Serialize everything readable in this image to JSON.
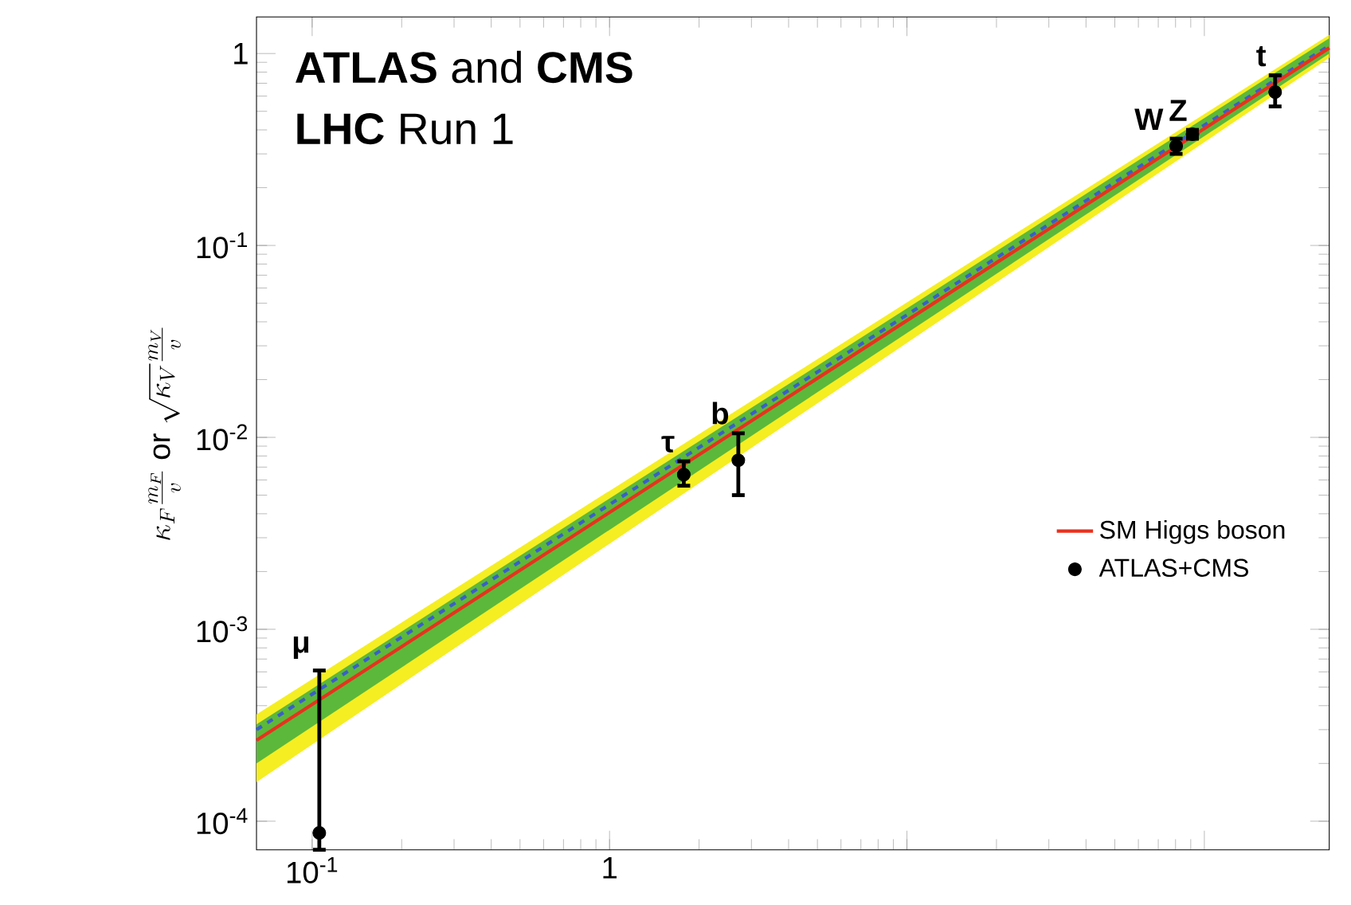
{
  "chart_data": {
    "type": "scatter",
    "ylabel": "\\kappa_F\\frac{m_F}{v}\\mbox{ or }\\sqrt{\\kappa_V}\\frac{m_V}{v}",
    "log": "xy",
    "xlim": [
      0.065,
      263
    ],
    "ylim": [
      7.1e-05,
      1.55
    ],
    "xticks": [
      {
        "value": 0.1,
        "label": "10$^{-1}$"
      },
      1,
      {
        "value": 10,
        "label": null
      },
      {
        "value": 100,
        "label": null
      }
    ],
    "yticks": [
      {
        "value": 0.0001,
        "label": "10$^{-4}$"
      },
      {
        "value": 0.001,
        "label": "10$^{-3}$"
      },
      {
        "value": 0.01,
        "label": "10$^{-2}$"
      },
      {
        "value": 0.1,
        "label": "10$^{-1}$"
      },
      1
    ],
    "grid": false,
    "legend": "right",
    "marker": "circle",
    "series": [
      {
        "type": "line",
        "color": "#3a5fc8",
        "line_style": "dashed",
        "marker": "none",
        "x": [
          0.065,
          263
        ],
        "values": [
          0.0003,
          1.1
        ],
        "lower": [
          0.00016,
          0.95
        ],
        "upper": [
          0.00036,
          1.25
        ]
      },
      {
        "name": "SM Higgs boson",
        "type": "line",
        "color": "#e8321e",
        "marker": "none",
        "x": [
          0.065,
          263
        ],
        "values": [
          0.000264,
          1.07
        ],
        "lower": [
          0.0002,
          1.0
        ],
        "upper": [
          0.00032,
          1.2
        ]
      },
      {
        "name": "ATLAS+CMS",
        "color": "#000000",
        "x": [
          0.1057,
          1.777,
          2.71,
          80.4,
          91.2,
          173
        ],
        "values": [
          8.7e-05,
          0.0064,
          0.0076,
          0.33,
          0.38,
          0.63
        ],
        "errors": [
          [
            7.1e-05,
            0.00061
          ],
          [
            0.0056,
            0.0075
          ],
          [
            0.005,
            0.0105
          ],
          0.03,
          0.02,
          [
            0.53,
            0.77
          ]
        ]
      }
    ],
    "annotations": [
      "**ATLAS** and **CMS**",
      "**LHC** Run 1",
      {
        "text": "μ",
        "x": 0.1057,
        "y": 0.00063
      },
      {
        "text": "τ",
        "x": 1.777,
        "y": 0.0075
      },
      {
        "text": "b",
        "x": 2.71,
        "y": 0.0105
      },
      {
        "text": "W",
        "x": 78,
        "y": 0.36
      },
      {
        "text": "Z",
        "x": 94,
        "y": 0.4
      },
      {
        "text": "t",
        "x": 173,
        "y": 0.77
      }
    ]
  }
}
